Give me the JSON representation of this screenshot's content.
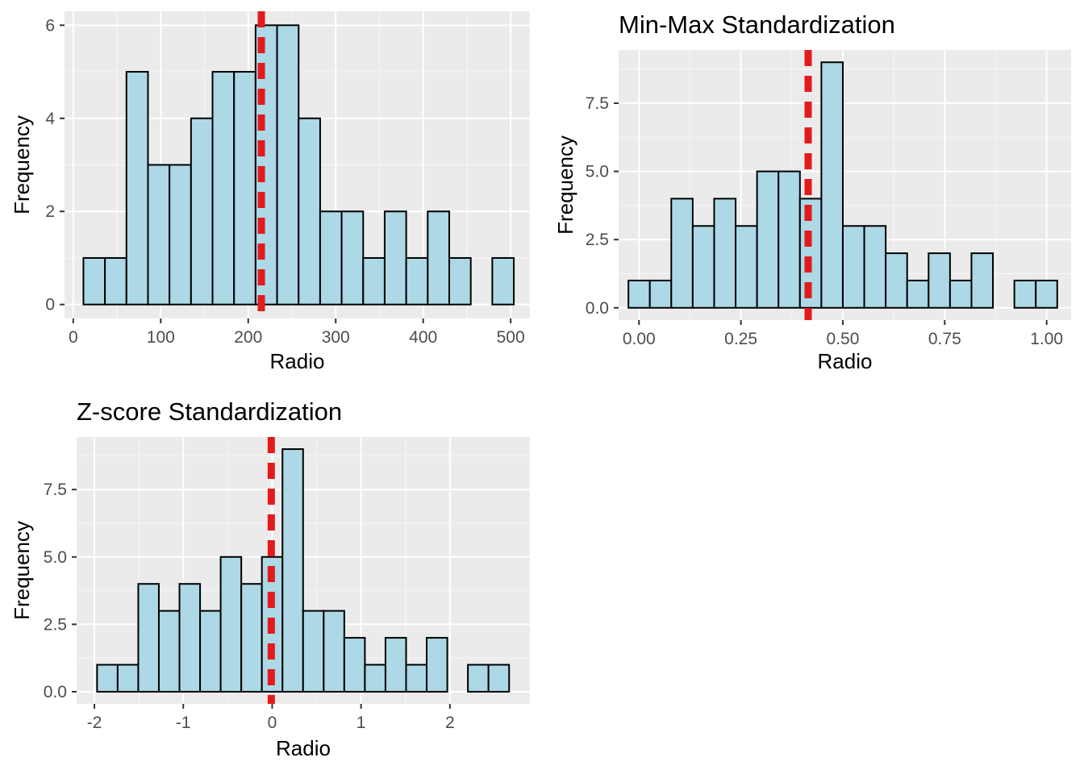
{
  "style": {
    "panel_bg": "#ebebeb",
    "grid_major": "#ffffff",
    "bar_fill": "#add8e6",
    "bar_stroke": "#000000",
    "vline_color": "#e31a1c",
    "tick_text": "#4d4d4d"
  },
  "chart_data": [
    {
      "type": "bar",
      "title": "",
      "xlabel": "Radio",
      "ylabel": "Frequency",
      "xlim": [
        -10,
        522
      ],
      "ylim": [
        -0.3,
        6.3
      ],
      "xticks": [
        0,
        100,
        200,
        300,
        400,
        500
      ],
      "xtick_labels": [
        "0",
        "100",
        "200",
        "300",
        "400",
        "500"
      ],
      "yticks": [
        0,
        2,
        4,
        6
      ],
      "ytick_labels": [
        "0",
        "2",
        "4",
        "6"
      ],
      "bin_start": 11.6,
      "bin_width": 24.6,
      "counts": [
        1,
        1,
        5,
        3,
        3,
        4,
        5,
        5,
        6,
        6,
        4,
        2,
        2,
        1,
        2,
        1,
        2,
        1,
        0,
        1
      ],
      "vline": 215
    },
    {
      "type": "bar",
      "title": "Min-Max Standardization",
      "xlabel": "Radio",
      "ylabel": "Frequency",
      "xlim": [
        -0.05,
        1.06
      ],
      "ylim": [
        -0.45,
        9.45
      ],
      "xticks": [
        0,
        0.25,
        0.5,
        0.75,
        1
      ],
      "xtick_labels": [
        "0.00",
        "0.25",
        "0.50",
        "0.75",
        "1.00"
      ],
      "yticks": [
        0,
        2.5,
        5,
        7.5
      ],
      "ytick_labels": [
        "0.0",
        "2.5",
        "5.0",
        "7.5"
      ],
      "bin_start": -0.026,
      "bin_width": 0.0526,
      "counts": [
        1,
        1,
        4,
        3,
        4,
        3,
        5,
        5,
        4,
        9,
        3,
        3,
        2,
        1,
        2,
        1,
        2,
        0,
        1,
        1
      ],
      "vline": 0.415
    },
    {
      "type": "bar",
      "title": "Z-score Standardization",
      "xlabel": "Radio",
      "ylabel": "Frequency",
      "xlim": [
        -2.2,
        2.9
      ],
      "ylim": [
        -0.45,
        9.45
      ],
      "xticks": [
        -2,
        -1,
        0,
        1,
        2
      ],
      "xtick_labels": [
        "-2",
        "-1",
        "0",
        "1",
        "2"
      ],
      "yticks": [
        0,
        2.5,
        5,
        7.5
      ],
      "ytick_labels": [
        "0.0",
        "2.5",
        "5.0",
        "7.5"
      ],
      "bin_start": -1.97,
      "bin_width": 0.2318,
      "counts": [
        1,
        1,
        4,
        3,
        4,
        3,
        5,
        4,
        5,
        9,
        3,
        3,
        2,
        1,
        2,
        1,
        2,
        0,
        1,
        1
      ],
      "vline": -0.01
    }
  ]
}
